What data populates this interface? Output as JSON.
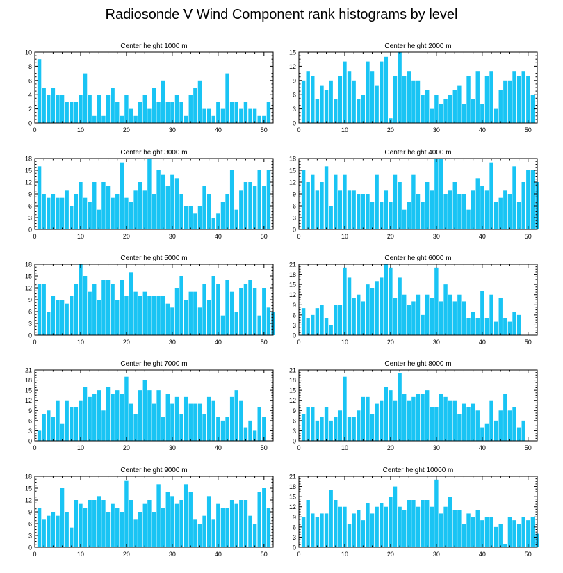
{
  "page": {
    "title": "Radiosonde V Wind Component rank histograms by level"
  },
  "colors": {
    "bar": "#19c4f4",
    "axis": "#000000",
    "background": "#ffffff"
  },
  "chart_data": [
    {
      "type": "bar",
      "title": "Center height 1000 m",
      "xlabel": "",
      "ylabel": "",
      "xlim": [
        0,
        52
      ],
      "xticks": [
        0,
        10,
        20,
        30,
        40,
        50
      ],
      "ylim": [
        0,
        10
      ],
      "yticks": [
        0,
        2,
        4,
        6,
        8,
        10
      ],
      "values": [
        9,
        5,
        4,
        5,
        4,
        4,
        3,
        3,
        3,
        4,
        7,
        4,
        1,
        4,
        1,
        4,
        5,
        3,
        1,
        4,
        2,
        1,
        3,
        4,
        2,
        5,
        3,
        6,
        3,
        3,
        4,
        3,
        1,
        4,
        5,
        6,
        2,
        2,
        1,
        3,
        2,
        7,
        3,
        3,
        2,
        3,
        2,
        2,
        1,
        1,
        3
      ]
    },
    {
      "type": "bar",
      "title": "Center height 2000 m",
      "xlabel": "",
      "ylabel": "",
      "xlim": [
        0,
        52
      ],
      "xticks": [
        0,
        10,
        20,
        30,
        40,
        50
      ],
      "ylim": [
        0,
        15
      ],
      "yticks": [
        0,
        3,
        6,
        9,
        12,
        15
      ],
      "values": [
        9,
        11,
        10,
        5,
        8,
        7,
        9,
        5,
        10,
        13,
        11,
        9,
        5,
        6,
        13,
        11,
        8,
        13,
        14,
        1,
        10,
        15,
        10,
        11,
        9,
        9,
        6,
        7,
        3,
        6,
        4,
        5,
        6,
        7,
        8,
        4,
        10,
        5,
        11,
        4,
        10,
        11,
        3,
        7,
        9,
        9,
        11,
        10,
        11,
        10,
        6
      ]
    },
    {
      "type": "bar",
      "title": "Center height 3000 m",
      "xlabel": "",
      "ylabel": "",
      "xlim": [
        0,
        52
      ],
      "xticks": [
        0,
        10,
        20,
        30,
        40,
        50
      ],
      "ylim": [
        0,
        18
      ],
      "yticks": [
        0,
        3,
        6,
        9,
        12,
        15,
        18
      ],
      "values": [
        16,
        9,
        8,
        9,
        8,
        8,
        10,
        6,
        9,
        12,
        8,
        7,
        12,
        5,
        12,
        11,
        8,
        9,
        17,
        8,
        7,
        10,
        12,
        10,
        18,
        9,
        15,
        14,
        11,
        14,
        13,
        9,
        6,
        6,
        4,
        6,
        11,
        9,
        3,
        4,
        7,
        9,
        15,
        5,
        10,
        12,
        12,
        11,
        15,
        11,
        15
      ]
    },
    {
      "type": "bar",
      "title": "Center height 4000 m",
      "xlabel": "",
      "ylabel": "",
      "xlim": [
        0,
        52
      ],
      "xticks": [
        0,
        10,
        20,
        30,
        40,
        50
      ],
      "ylim": [
        0,
        18
      ],
      "yticks": [
        0,
        3,
        6,
        9,
        12,
        15,
        18
      ],
      "values": [
        15,
        12,
        14,
        10,
        12,
        16,
        6,
        14,
        10,
        14,
        10,
        10,
        9,
        9,
        9,
        7,
        14,
        7,
        10,
        7,
        14,
        12,
        5,
        7,
        14,
        9,
        7,
        12,
        10,
        18,
        18,
        9,
        10,
        12,
        9,
        9,
        5,
        10,
        13,
        11,
        10,
        17,
        7,
        8,
        10,
        9,
        16,
        7,
        12,
        15,
        15,
        12
      ]
    },
    {
      "type": "bar",
      "title": "Center height 5000 m",
      "xlabel": "",
      "ylabel": "",
      "xlim": [
        0,
        52
      ],
      "xticks": [
        0,
        10,
        20,
        30,
        40,
        50
      ],
      "ylim": [
        0,
        18
      ],
      "yticks": [
        0,
        3,
        6,
        9,
        12,
        15,
        18
      ],
      "values": [
        13,
        13,
        6,
        10,
        9,
        9,
        8,
        10,
        13,
        18,
        15,
        11,
        13,
        9,
        14,
        14,
        13,
        9,
        14,
        10,
        16,
        11,
        10,
        11,
        10,
        10,
        10,
        10,
        8,
        7,
        12,
        15,
        9,
        11,
        11,
        7,
        13,
        9,
        15,
        13,
        5,
        14,
        11,
        6,
        12,
        13,
        14,
        12,
        5,
        12,
        7,
        6
      ]
    },
    {
      "type": "bar",
      "title": "Center height 6000 m",
      "xlabel": "",
      "ylabel": "",
      "xlim": [
        0,
        52
      ],
      "xticks": [
        0,
        10,
        20,
        30,
        40,
        50
      ],
      "ylim": [
        0,
        21
      ],
      "yticks": [
        0,
        3,
        6,
        9,
        12,
        15,
        18,
        21
      ],
      "values": [
        8,
        5,
        6,
        8,
        9,
        5,
        3,
        9,
        9,
        20,
        17,
        11,
        12,
        10,
        15,
        14,
        16,
        17,
        21,
        20,
        11,
        17,
        12,
        9,
        10,
        12,
        6,
        12,
        11,
        20,
        10,
        15,
        12,
        10,
        12,
        10,
        5,
        7,
        5,
        13,
        5,
        12,
        4,
        11,
        5,
        4,
        7,
        6
      ]
    },
    {
      "type": "bar",
      "title": "Center height 7000 m",
      "xlabel": "",
      "ylabel": "",
      "xlim": [
        0,
        52
      ],
      "xticks": [
        0,
        10,
        20,
        30,
        40,
        50
      ],
      "ylim": [
        0,
        21
      ],
      "yticks": [
        0,
        3,
        6,
        9,
        12,
        15,
        18,
        21
      ],
      "values": [
        3,
        8,
        9,
        7,
        12,
        5,
        12,
        10,
        10,
        12,
        16,
        13,
        14,
        15,
        9,
        16,
        14,
        15,
        14,
        19,
        11,
        8,
        15,
        18,
        15,
        11,
        15,
        7,
        14,
        11,
        13,
        8,
        13,
        11,
        11,
        11,
        8,
        13,
        12,
        7,
        6,
        7,
        13,
        15,
        12,
        4,
        6,
        3,
        10,
        7
      ]
    },
    {
      "type": "bar",
      "title": "Center height 8000 m",
      "xlabel": "",
      "ylabel": "",
      "xlim": [
        0,
        52
      ],
      "xticks": [
        0,
        10,
        20,
        30,
        40,
        50
      ],
      "ylim": [
        0,
        21
      ],
      "yticks": [
        0,
        3,
        6,
        9,
        12,
        15,
        18,
        21
      ],
      "values": [
        8,
        10,
        10,
        6,
        7,
        10,
        6,
        7,
        9,
        19,
        7,
        7,
        9,
        13,
        13,
        8,
        11,
        12,
        16,
        15,
        12,
        20,
        14,
        12,
        13,
        14,
        14,
        15,
        10,
        10,
        14,
        13,
        12,
        12,
        8,
        11,
        10,
        11,
        9,
        4,
        5,
        12,
        6,
        9,
        14,
        9,
        10,
        4,
        6
      ]
    },
    {
      "type": "bar",
      "title": "Center height 9000 m",
      "xlabel": "",
      "ylabel": "",
      "xlim": [
        0,
        52
      ],
      "xticks": [
        0,
        10,
        20,
        30,
        40,
        50
      ],
      "ylim": [
        0,
        18
      ],
      "yticks": [
        0,
        3,
        6,
        9,
        12,
        15,
        18
      ],
      "values": [
        10,
        7,
        8,
        9,
        8,
        15,
        9,
        5,
        12,
        11,
        10,
        12,
        12,
        13,
        12,
        9,
        11,
        10,
        9,
        17,
        12,
        7,
        9,
        11,
        12,
        9,
        16,
        10,
        14,
        13,
        11,
        12,
        16,
        14,
        7,
        6,
        8,
        13,
        7,
        11,
        10,
        10,
        12,
        11,
        12,
        12,
        8,
        6,
        14,
        15,
        10
      ]
    },
    {
      "type": "bar",
      "title": "Center height 10000 m",
      "xlabel": "",
      "ylabel": "",
      "xlim": [
        0,
        52
      ],
      "xticks": [
        0,
        10,
        20,
        30,
        40,
        50
      ],
      "ylim": [
        0,
        21
      ],
      "yticks": [
        0,
        3,
        6,
        9,
        12,
        15,
        18,
        21
      ],
      "values": [
        9,
        14,
        10,
        9,
        10,
        10,
        17,
        14,
        12,
        12,
        7,
        10,
        11,
        8,
        13,
        10,
        12,
        13,
        12,
        15,
        18,
        12,
        11,
        14,
        14,
        12,
        14,
        14,
        12,
        20,
        10,
        12,
        15,
        11,
        11,
        7,
        10,
        9,
        11,
        8,
        9,
        9,
        6,
        7,
        1,
        9,
        8,
        7,
        9,
        8,
        9,
        4
      ]
    }
  ]
}
